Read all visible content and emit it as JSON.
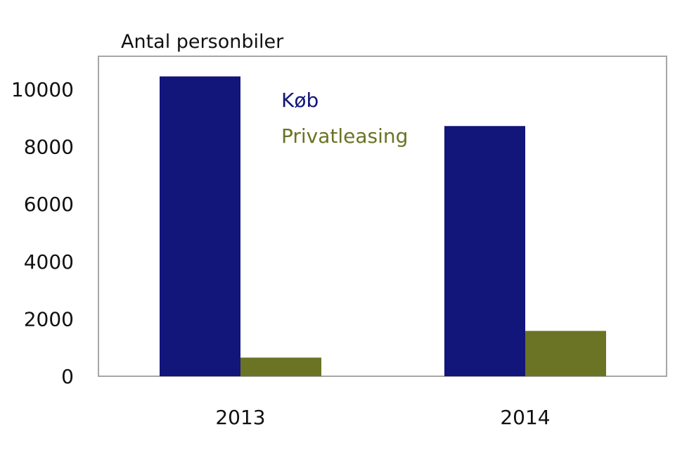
{
  "chart_data": {
    "type": "bar",
    "ylabel": "Antal personbiler",
    "categories": [
      "2013",
      "2014"
    ],
    "series": [
      {
        "name": "Køb",
        "values": [
          10450,
          8720
        ],
        "color": "#12157a"
      },
      {
        "name": "Privatleasing",
        "values": [
          650,
          1580
        ],
        "color": "#6b7324"
      }
    ],
    "ylim": [
      0,
      10500
    ],
    "yticks": [
      0,
      2000,
      4000,
      6000,
      8000,
      10000
    ],
    "grid": false,
    "legend": "inside top-center"
  }
}
